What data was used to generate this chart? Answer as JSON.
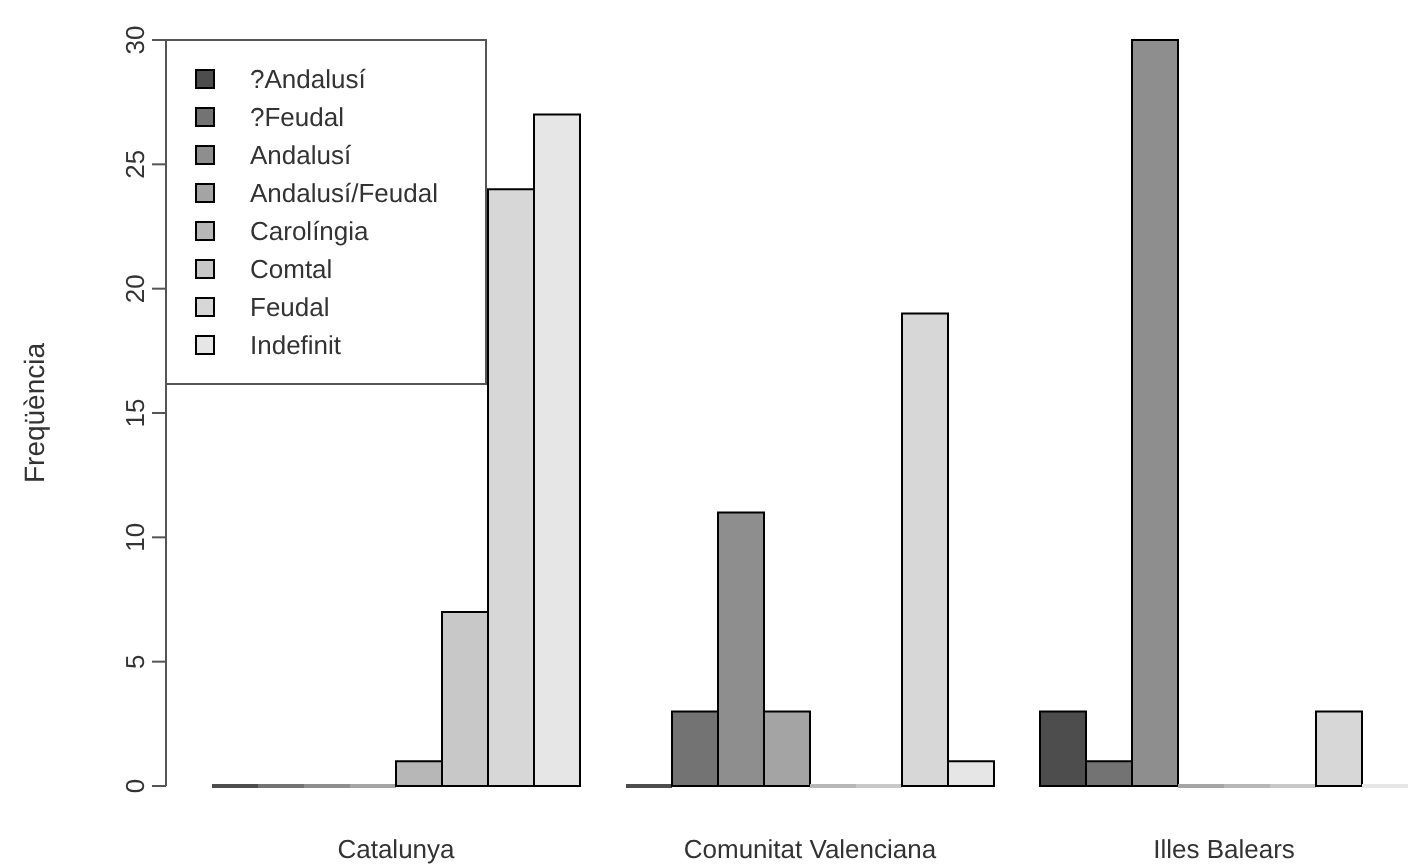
{
  "chart_data": {
    "type": "bar",
    "ylabel": "Freqüència",
    "categories": [
      "Catalunya",
      "Comunitat Valenciana",
      "Illes Balears"
    ],
    "series": [
      {
        "name": "?Andalusí",
        "color": "#4d4d4d",
        "values": [
          0,
          0,
          3
        ]
      },
      {
        "name": "?Feudal",
        "color": "#737373",
        "values": [
          0,
          3,
          1
        ]
      },
      {
        "name": "Andalusí",
        "color": "#8e8e8e",
        "values": [
          0,
          11,
          30
        ]
      },
      {
        "name": "Andalusí/Feudal",
        "color": "#a4a4a4",
        "values": [
          0,
          3,
          0
        ]
      },
      {
        "name": "Carolíngia",
        "color": "#b7b7b7",
        "values": [
          1,
          0,
          0
        ]
      },
      {
        "name": "Comtal",
        "color": "#c8c8c8",
        "values": [
          7,
          0,
          0
        ]
      },
      {
        "name": "Feudal",
        "color": "#d7d7d7",
        "values": [
          24,
          19,
          3
        ]
      },
      {
        "name": "Indefinit",
        "color": "#e6e6e6",
        "values": [
          27,
          1,
          0
        ]
      }
    ],
    "ylim": [
      0,
      30
    ],
    "yticks": [
      0,
      5,
      10,
      15,
      20,
      25,
      30
    ],
    "legend": "top left"
  }
}
